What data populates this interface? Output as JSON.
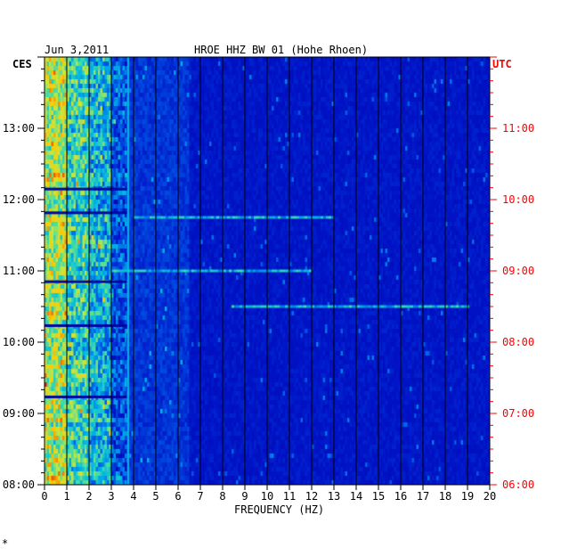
{
  "chart_data": {
    "type": "heatmap",
    "title": "HROE HHZ BW 01 (Hohe Rhoen)",
    "date": "Jun 3,2011",
    "xlabel": "FREQUENCY (HZ)",
    "left_axis_label": "CES",
    "right_axis_label": "UTC",
    "xlim": [
      0,
      20
    ],
    "x_ticks": [
      "0",
      "1",
      "2",
      "3",
      "4",
      "5",
      "6",
      "7",
      "8",
      "9",
      "10",
      "11",
      "12",
      "13",
      "14",
      "15",
      "16",
      "17",
      "18",
      "19",
      "20"
    ],
    "left_ticks": [
      "08:00",
      "09:00",
      "10:00",
      "11:00",
      "12:00",
      "13:00"
    ],
    "right_ticks": [
      "06:00",
      "07:00",
      "08:00",
      "09:00",
      "10:00",
      "11:00"
    ],
    "time_range_ces": [
      "08:00",
      "14:00"
    ],
    "notable_lines": [
      {
        "time_ces": "11:00",
        "freq_range_hz": [
          3.0,
          12.0
        ],
        "note": "broadband burst"
      },
      {
        "time_ces": "10:30",
        "freq_range_hz": [
          8.4,
          19.0
        ],
        "note": "narrow line"
      },
      {
        "time_ces": "11:45",
        "freq_range_hz": [
          4.0,
          13.0
        ],
        "note": "weak line"
      }
    ],
    "colormap": "blue-cyan-yellow-red",
    "grid": true
  },
  "colors": {
    "background": "#0000a8",
    "left_axis": "#000000",
    "right_axis": "#ff0000"
  },
  "footer_mark": "*"
}
